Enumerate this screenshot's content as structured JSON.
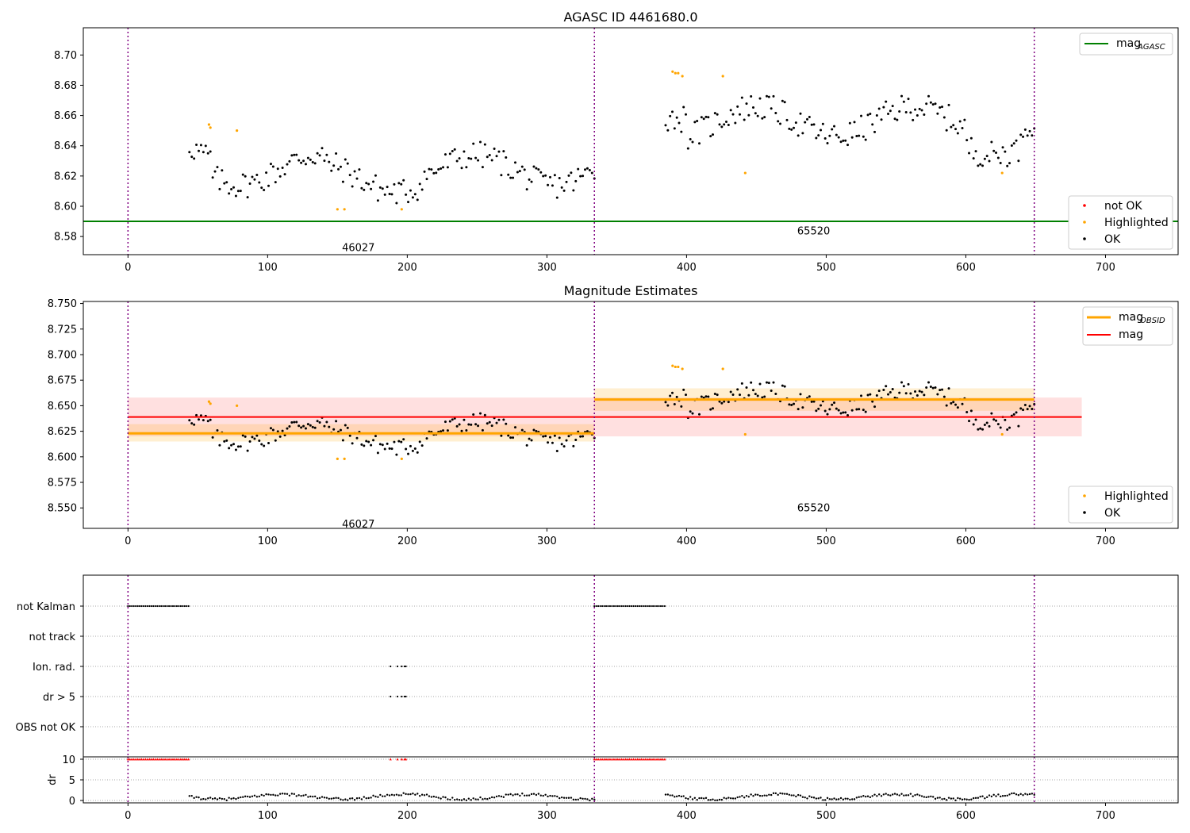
{
  "chart_data": [
    {
      "type": "scatter",
      "title": "AGASC ID 4461680.0",
      "xlim": [
        -32,
        752
      ],
      "ylim": [
        8.568,
        8.718
      ],
      "xticks": [
        "0",
        "100",
        "200",
        "300",
        "400",
        "500",
        "600",
        "700"
      ],
      "yticks": [
        "8.58",
        "8.60",
        "8.62",
        "8.64",
        "8.66",
        "8.68",
        "8.70"
      ],
      "obsid_boundaries": [
        0,
        334,
        649
      ],
      "obsid_labels": [
        {
          "text": "46027",
          "x": 165,
          "y": 8.573
        },
        {
          "text": "65520",
          "x": 491,
          "y": 8.584
        }
      ],
      "mag_agasc": 8.59,
      "series": [
        {
          "name": "not OK",
          "color": "#ff0000",
          "points": []
        },
        {
          "name": "Highlighted",
          "color": "#ffa500",
          "points": [
            [
              58,
              8.654
            ],
            [
              59,
              8.652
            ],
            [
              78,
              8.65
            ],
            [
              150,
              8.598
            ],
            [
              155,
              8.598
            ],
            [
              196,
              8.598
            ],
            [
              390,
              8.689
            ],
            [
              392,
              8.688
            ],
            [
              394,
              8.688
            ],
            [
              397,
              8.686
            ],
            [
              426,
              8.686
            ],
            [
              442,
              8.622
            ],
            [
              626,
              8.622
            ]
          ]
        },
        {
          "name": "OK",
          "color": "#000000",
          "segments": [
            {
              "x0": 44,
              "x1": 334,
              "n": 175,
              "base": 8.624,
              "phase": 0.3
            },
            {
              "x0": 385,
              "x1": 649,
              "n": 165,
              "base": 8.656,
              "phase": 1.7
            }
          ]
        }
      ],
      "legend_line": {
        "name": "mag",
        "subscript": "AGASC",
        "color": "#008000"
      }
    },
    {
      "type": "scatter",
      "title": "Magnitude Estimates",
      "xlim": [
        -32,
        752
      ],
      "ylim": [
        8.53,
        8.752
      ],
      "xticks": [
        "0",
        "100",
        "200",
        "300",
        "400",
        "500",
        "600",
        "700"
      ],
      "yticks": [
        "8.550",
        "8.575",
        "8.600",
        "8.625",
        "8.650",
        "8.675",
        "8.700",
        "8.725",
        "8.750"
      ],
      "obsid_boundaries": [
        0,
        334,
        649
      ],
      "obsid_labels": [
        {
          "text": "46027",
          "x": 165,
          "y": 8.5345
        },
        {
          "text": "65520",
          "x": 491,
          "y": 8.5505
        }
      ],
      "mag": {
        "value": 8.639,
        "low": 8.62,
        "high": 8.658,
        "x0": 0,
        "x1": 683
      },
      "mag_obsid": [
        {
          "value": 8.623,
          "low": 8.615,
          "high": 8.632,
          "x0": 0,
          "x1": 334
        },
        {
          "value": 8.656,
          "low": 8.645,
          "high": 8.667,
          "x0": 334,
          "x1": 649
        }
      ],
      "legend_lines": [
        {
          "name": "mag",
          "subscript": "OBSID",
          "color": "#ffa500"
        },
        {
          "name": "mag",
          "subscript": "",
          "color": "#ff0000"
        }
      ],
      "legend_points": [
        {
          "name": "Highlighted",
          "color": "#ffa500"
        },
        {
          "name": "OK",
          "color": "#000000"
        }
      ]
    },
    {
      "type": "scatter",
      "xlim": [
        -32,
        752
      ],
      "flags": [
        "not Kalman",
        "not track",
        "Ion. rad.",
        "dr > 5",
        "OBS not OK"
      ],
      "flag_points": {
        "not Kalman": [
          [
            0,
            44
          ],
          [
            334,
            385
          ]
        ],
        "Ion. rad.": [
          [
            188,
            188
          ],
          [
            193,
            193
          ],
          [
            196,
            196
          ],
          [
            198,
            198
          ],
          [
            199,
            199
          ]
        ],
        "dr > 5": [
          [
            188,
            188
          ],
          [
            193,
            193
          ],
          [
            196,
            196
          ],
          [
            198,
            198
          ],
          [
            199,
            199
          ]
        ]
      },
      "dr_yticks": [
        "0",
        "5",
        "10"
      ],
      "dr_ylabel": "dr",
      "dr_clip": 10,
      "xticks": [
        "0",
        "100",
        "200",
        "300",
        "400",
        "500",
        "600",
        "700"
      ]
    }
  ]
}
